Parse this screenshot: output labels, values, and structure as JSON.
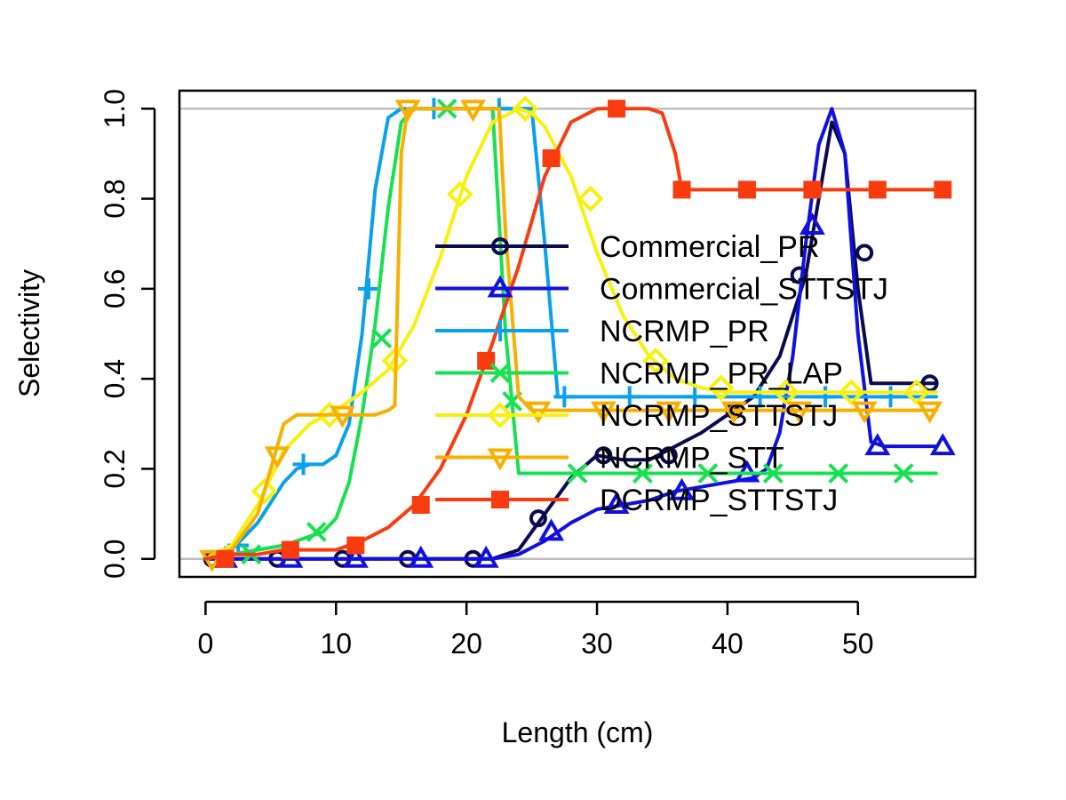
{
  "chart_data": {
    "type": "line",
    "title": "",
    "xlabel": "Length (cm)",
    "ylabel": "Selectivity",
    "xlim": [
      -2,
      59
    ],
    "ylim": [
      -0.04,
      1.04
    ],
    "x_ticks": [
      "0",
      "10",
      "20",
      "30",
      "40",
      "50"
    ],
    "y_ticks": [
      "0.0",
      "0.2",
      "0.4",
      "0.6",
      "0.8",
      "1.0"
    ],
    "reference_lines": [
      0,
      1
    ],
    "legend_position": "right",
    "series": [
      {
        "name": "Commercial_PR",
        "color": "#0a0a50",
        "marker": "circle",
        "x": [
          0,
          5,
          10,
          15,
          20,
          22,
          24,
          26,
          28,
          30,
          32,
          34,
          36,
          38,
          40,
          42,
          44,
          46,
          47,
          48,
          49,
          50,
          51,
          52,
          54,
          56
        ],
        "y": [
          0,
          0,
          0,
          0,
          0,
          0,
          0.02,
          0.1,
          0.18,
          0.23,
          0.22,
          0.22,
          0.25,
          0.28,
          0.32,
          0.36,
          0.45,
          0.63,
          0.8,
          0.97,
          0.9,
          0.6,
          0.39,
          0.39,
          0.39,
          0.39
        ],
        "markers_x": [
          0.5,
          5.5,
          10.5,
          15.5,
          20.5,
          25.5,
          30.5,
          35.5,
          40.5,
          45.5,
          50.5,
          55.5
        ],
        "markers_y": [
          0,
          0,
          0,
          0,
          0,
          0.09,
          0.23,
          0.23,
          0.33,
          0.63,
          0.68,
          0.39
        ]
      },
      {
        "name": "Commercial_STTSTJ",
        "color": "#1010e0",
        "marker": "triangle",
        "x": [
          0,
          5,
          10,
          15,
          20,
          22,
          24,
          26,
          28,
          30,
          32,
          34,
          36,
          38,
          40,
          42,
          43,
          44,
          45,
          46,
          47,
          48,
          49,
          50,
          51,
          52,
          54,
          56
        ],
        "y": [
          0,
          0,
          0,
          0,
          0,
          0,
          0.01,
          0.04,
          0.08,
          0.11,
          0.12,
          0.13,
          0.15,
          0.16,
          0.17,
          0.18,
          0.2,
          0.28,
          0.45,
          0.7,
          0.92,
          1.0,
          0.9,
          0.5,
          0.26,
          0.25,
          0.25,
          0.25
        ],
        "markers_x": [
          1.5,
          6.5,
          11.5,
          16.5,
          21.5,
          26.5,
          31.5,
          36.5,
          41.5,
          46.5,
          51.5,
          56.5
        ],
        "markers_y": [
          0,
          0,
          0,
          0,
          0,
          0.06,
          0.12,
          0.15,
          0.19,
          0.74,
          0.25,
          0.25
        ]
      },
      {
        "name": "NCRMP_PR",
        "color": "#0aa0f0",
        "marker": "plus",
        "x": [
          0,
          2,
          4,
          6,
          7,
          8,
          9,
          10,
          11,
          12,
          13,
          14,
          15,
          16,
          17,
          18,
          19,
          20,
          21,
          22,
          23,
          24,
          25,
          26,
          27,
          30,
          35,
          40,
          45,
          50,
          56
        ],
        "y": [
          0,
          0.02,
          0.08,
          0.17,
          0.2,
          0.21,
          0.21,
          0.23,
          0.3,
          0.5,
          0.82,
          0.98,
          1.0,
          1.0,
          1.0,
          1.0,
          1.0,
          1.0,
          1.0,
          1.0,
          1.0,
          1.0,
          1.0,
          0.7,
          0.36,
          0.36,
          0.36,
          0.36,
          0.36,
          0.36,
          0.36
        ],
        "markers_x": [
          2.5,
          7.5,
          12.5,
          17.5,
          22.5,
          27.5,
          32.5,
          37.5,
          42.5,
          47.5,
          52.5
        ],
        "markers_y": [
          0.03,
          0.21,
          0.6,
          1.0,
          1.0,
          0.36,
          0.36,
          0.36,
          0.36,
          0.36,
          0.36
        ]
      },
      {
        "name": "NCRMP_PR_LAP",
        "color": "#18e050",
        "marker": "x",
        "x": [
          0,
          2,
          4,
          6,
          8,
          9,
          10,
          11,
          12,
          13,
          14,
          15,
          16,
          17,
          18,
          20,
          22,
          23,
          24,
          25,
          26,
          28,
          30,
          35,
          40,
          45,
          50,
          56
        ],
        "y": [
          0,
          0.01,
          0.02,
          0.03,
          0.05,
          0.06,
          0.09,
          0.17,
          0.32,
          0.52,
          0.78,
          0.97,
          1.0,
          1.0,
          1.0,
          1.0,
          1.0,
          0.5,
          0.19,
          0.19,
          0.19,
          0.19,
          0.19,
          0.19,
          0.19,
          0.19,
          0.19,
          0.19
        ],
        "markers_x": [
          3.5,
          8.5,
          13.5,
          18.5,
          23.5,
          28.5,
          33.5,
          38.5,
          43.5,
          48.5,
          53.5
        ],
        "markers_y": [
          0.01,
          0.06,
          0.49,
          1.0,
          0.35,
          0.19,
          0.19,
          0.19,
          0.19,
          0.19,
          0.19
        ]
      },
      {
        "name": "NCRMP_STTSTJ",
        "color": "#f8f010",
        "marker": "diamond",
        "x": [
          0,
          2,
          4,
          6,
          8,
          10,
          12,
          14,
          16,
          18,
          20,
          22,
          24,
          25,
          26,
          28,
          30,
          32,
          34,
          36,
          38,
          40,
          42,
          44,
          46,
          48,
          50,
          52,
          54,
          56
        ],
        "y": [
          0,
          0.03,
          0.12,
          0.24,
          0.3,
          0.33,
          0.37,
          0.42,
          0.52,
          0.67,
          0.85,
          0.97,
          1.0,
          0.99,
          0.96,
          0.85,
          0.68,
          0.54,
          0.45,
          0.4,
          0.38,
          0.37,
          0.37,
          0.37,
          0.37,
          0.37,
          0.37,
          0.37,
          0.37,
          0.37
        ],
        "markers_x": [
          4.5,
          9.5,
          14.5,
          19.5,
          24.5,
          29.5,
          34.5,
          39.5,
          44.5,
          49.5,
          54.5
        ],
        "markers_y": [
          0.15,
          0.32,
          0.44,
          0.81,
          1.0,
          0.8,
          0.44,
          0.38,
          0.37,
          0.37,
          0.37
        ]
      },
      {
        "name": "NCRMP_STT",
        "color": "#f8b000",
        "marker": "triangle-down",
        "x": [
          0,
          2,
          4,
          5,
          6,
          7,
          8,
          10,
          12,
          13,
          14,
          14.5,
          15,
          15.5,
          16,
          17,
          18,
          20,
          21,
          22,
          22.5,
          23,
          24,
          25,
          26,
          30,
          35,
          40,
          45,
          50,
          56
        ],
        "y": [
          0,
          0.02,
          0.1,
          0.2,
          0.3,
          0.32,
          0.32,
          0.32,
          0.32,
          0.32,
          0.33,
          0.34,
          0.9,
          1.0,
          1.0,
          1.0,
          1.0,
          1.0,
          1.0,
          1.0,
          1.0,
          0.72,
          0.36,
          0.33,
          0.33,
          0.33,
          0.33,
          0.33,
          0.33,
          0.33,
          0.33
        ],
        "markers_x": [
          0.5,
          5.5,
          10.5,
          15.5,
          20.5,
          25.5,
          30.5,
          35.5,
          40.5,
          45.5,
          50.5,
          55.5
        ],
        "markers_y": [
          0,
          0.23,
          0.32,
          1.0,
          1.0,
          0.33,
          0.33,
          0.33,
          0.33,
          0.33,
          0.33,
          0.33
        ]
      },
      {
        "name": "DCRMP_STTSTJ",
        "color": "#f83c10",
        "marker": "square",
        "x": [
          0,
          2,
          4,
          6,
          8,
          10,
          12,
          14,
          16,
          18,
          20,
          22,
          24,
          26,
          28,
          30,
          32,
          34,
          35,
          36,
          36.5,
          38,
          40,
          45,
          50,
          56
        ],
        "y": [
          0,
          0.01,
          0.01,
          0.02,
          0.02,
          0.02,
          0.04,
          0.07,
          0.12,
          0.2,
          0.32,
          0.48,
          0.65,
          0.85,
          0.97,
          1.0,
          1.0,
          1.0,
          0.99,
          0.9,
          0.82,
          0.82,
          0.82,
          0.82,
          0.82,
          0.82
        ],
        "markers_x": [
          1.5,
          6.5,
          11.5,
          16.5,
          21.5,
          26.5,
          31.5,
          36.5,
          41.5,
          46.5,
          51.5,
          56.5
        ],
        "markers_y": [
          0,
          0.02,
          0.03,
          0.12,
          0.44,
          0.89,
          1.0,
          0.82,
          0.82,
          0.82,
          0.82,
          0.82
        ]
      }
    ]
  }
}
